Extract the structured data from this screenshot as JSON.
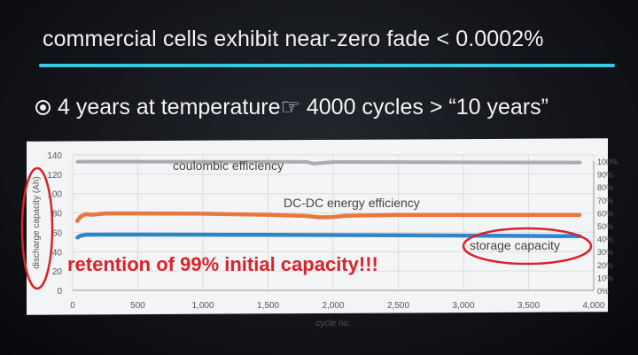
{
  "slide": {
    "title": "commercial cells exhibit near-zero fade < 0.0002%",
    "bullet": "4 years at temperature☞ 4000 cycles > “10 years”",
    "accent_color": "#3cc6e6"
  },
  "annotations": {
    "retention": "retention of 99% initial capacity!!!",
    "color": "#d8232a"
  },
  "chart_data": {
    "type": "line",
    "xlabel": "cycle no.",
    "ylabel": "discharge capacity (Ah)",
    "xlim": [
      0,
      4000
    ],
    "ylim": [
      0,
      140
    ],
    "y2lim": [
      0,
      100
    ],
    "grid": true,
    "x_ticks": [
      "0",
      "500",
      "1,000",
      "1,500",
      "2,000",
      "2,500",
      "3,000",
      "3,500",
      "4,000"
    ],
    "y_ticks": [
      "0",
      "20",
      "40",
      "60",
      "80",
      "100",
      "120",
      "140"
    ],
    "y2_ticks": [
      "0%",
      "10%",
      "20%",
      "30%",
      "40%",
      "50%",
      "60%",
      "70%",
      "80%",
      "90%",
      "100%"
    ],
    "series": [
      {
        "name": "coulombic efficiency",
        "axis": "right",
        "color": "#a9abae",
        "x": [
          30,
          100,
          250,
          500,
          1000,
          1500,
          1800,
          1850,
          2000,
          2500,
          3000,
          3500,
          3900
        ],
        "y": [
          99.5,
          99.6,
          99.6,
          99.6,
          99.5,
          99.5,
          99.4,
          98,
          99.3,
          99.2,
          99.1,
          99.0,
          98.9
        ]
      },
      {
        "name": "DC-DC energy efficiency",
        "axis": "right",
        "color": "#e8773b",
        "x": [
          30,
          60,
          100,
          150,
          250,
          500,
          1000,
          1500,
          1800,
          1900,
          2000,
          2100,
          2500,
          3000,
          3500,
          3900
        ],
        "y": [
          53,
          57,
          59,
          58.5,
          59.5,
          59.5,
          59.3,
          58.5,
          57.5,
          56.5,
          56.8,
          57.8,
          58.3,
          58.3,
          58.3,
          58.3
        ]
      },
      {
        "name": "storage capacity",
        "axis": "left",
        "color": "#2e86c8",
        "x": [
          30,
          60,
          100,
          250,
          500,
          1000,
          1500,
          2000,
          2500,
          3000,
          3500,
          3900
        ],
        "y": [
          54,
          56.5,
          57.5,
          57.6,
          57.6,
          57.5,
          57.4,
          57.2,
          57.0,
          56.6,
          56.3,
          56.0
        ]
      }
    ]
  }
}
